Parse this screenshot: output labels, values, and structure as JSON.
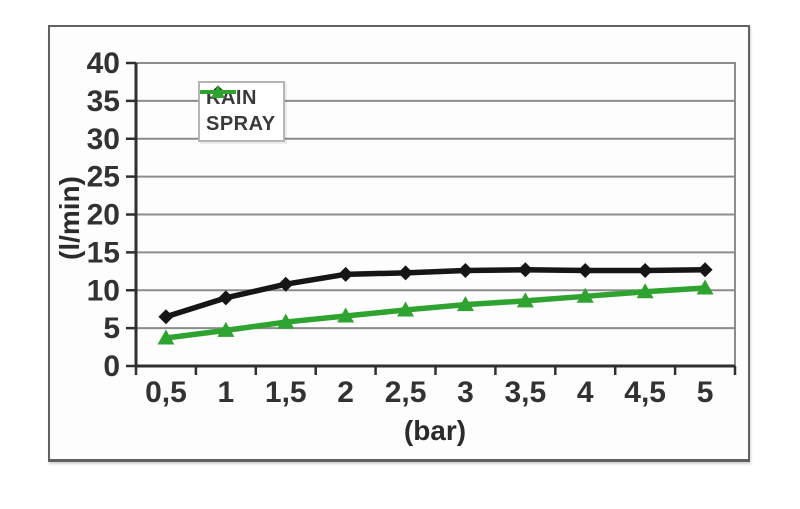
{
  "page": {
    "background": "#ffffff"
  },
  "chart": {
    "frame_border_color": "#5f6163",
    "plot_background": "#fdfdfd",
    "gridline_color": "#8c8c8c",
    "axis_color": "#2f2f2f",
    "tick_text_color": "#323232",
    "legend_border_color": "#b5b5b5",
    "legend_background": "#ffffff"
  },
  "chart_data": {
    "type": "line",
    "title": "",
    "xlabel": "(bar)",
    "ylabel": "(l/min)",
    "categories": [
      "0,5",
      "1",
      "1,5",
      "2",
      "2,5",
      "3",
      "3,5",
      "4",
      "4,5",
      "5"
    ],
    "x_numeric": [
      0.5,
      1,
      1.5,
      2,
      2.5,
      3,
      3.5,
      4,
      4.5,
      5
    ],
    "ylim": [
      0,
      40
    ],
    "y_ticks": [
      0,
      5,
      10,
      15,
      20,
      25,
      30,
      35,
      40
    ],
    "grid": "horizontal",
    "legend_position": "upper-left-inside",
    "series": [
      {
        "name": "RAIN",
        "color": "#161616",
        "marker": "diamond",
        "values": [
          6.5,
          9.0,
          10.8,
          12.1,
          12.3,
          12.6,
          12.7,
          12.6,
          12.6,
          12.7
        ]
      },
      {
        "name": "SPRAY",
        "color": "#2ea330",
        "marker": "triangle",
        "values": [
          3.7,
          4.7,
          5.8,
          6.6,
          7.4,
          8.1,
          8.6,
          9.2,
          9.8,
          10.3
        ]
      }
    ]
  }
}
